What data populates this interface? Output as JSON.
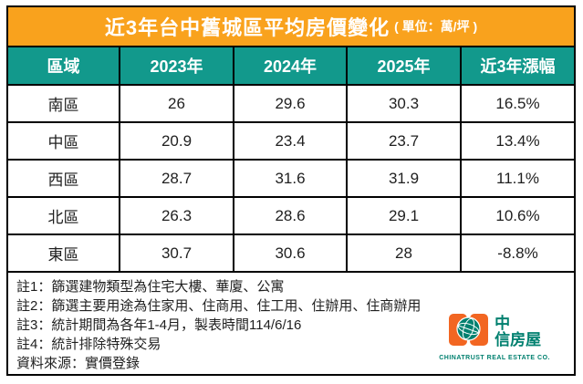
{
  "title": {
    "main": "近3年台中舊城區平均房價變化",
    "unit": "( 單位：萬/坪 )"
  },
  "table": {
    "headers": [
      "區域",
      "2023年",
      "2024年",
      "2025年",
      "近3年漲幅"
    ],
    "rows": [
      [
        "南區",
        "26",
        "29.6",
        "30.3",
        "16.5%"
      ],
      [
        "中區",
        "20.9",
        "23.4",
        "23.7",
        "13.4%"
      ],
      [
        "西區",
        "28.7",
        "31.6",
        "31.9",
        "11.1%"
      ],
      [
        "北區",
        "26.3",
        "28.6",
        "29.1",
        "10.6%"
      ],
      [
        "東區",
        "30.7",
        "30.6",
        "28",
        "-8.8%"
      ]
    ]
  },
  "notes": [
    "註1：篩選建物類型為住宅大樓、華廈、公寓",
    "註2：篩選主要用途為住家用、住商用、住工用、住辦用、住商辦用",
    "註3：統計期間為各年1-4月，製表時間114/6/16",
    "註4：統計排除特殊交易",
    "資料來源：實價登錄"
  ],
  "logo": {
    "cn_top": "中",
    "cn_bottom": "信房屋",
    "en": "CHINATRUST REAL ESTATE CO."
  },
  "colors": {
    "title_bg": "#F9A21D",
    "header_bg": "#12998C",
    "border": "#000000",
    "logo_orange": "#F26622",
    "logo_teal": "#00806F"
  },
  "chart_data": {
    "type": "table",
    "title": "近3年台中舊城區平均房價變化（單位：萬/坪）",
    "columns": [
      "區域",
      "2023年",
      "2024年",
      "2025年",
      "近3年漲幅"
    ],
    "rows": [
      [
        "南區",
        26,
        29.6,
        30.3,
        "16.5%"
      ],
      [
        "中區",
        20.9,
        23.4,
        23.7,
        "13.4%"
      ],
      [
        "西區",
        28.7,
        31.6,
        31.9,
        "11.1%"
      ],
      [
        "北區",
        26.3,
        28.6,
        29.1,
        "10.6%"
      ],
      [
        "東區",
        30.7,
        30.6,
        28,
        "-8.8%"
      ]
    ],
    "notes": [
      "註1：篩選建物類型為住宅大樓、華廈、公寓",
      "註2：篩選主要用途為住家用、住商用、住工用、住辦用、住商辦用",
      "註3：統計期間為各年1-4月，製表時間114/6/16",
      "註4：統計排除特殊交易",
      "資料來源：實價登錄"
    ],
    "source": "實價登錄"
  }
}
